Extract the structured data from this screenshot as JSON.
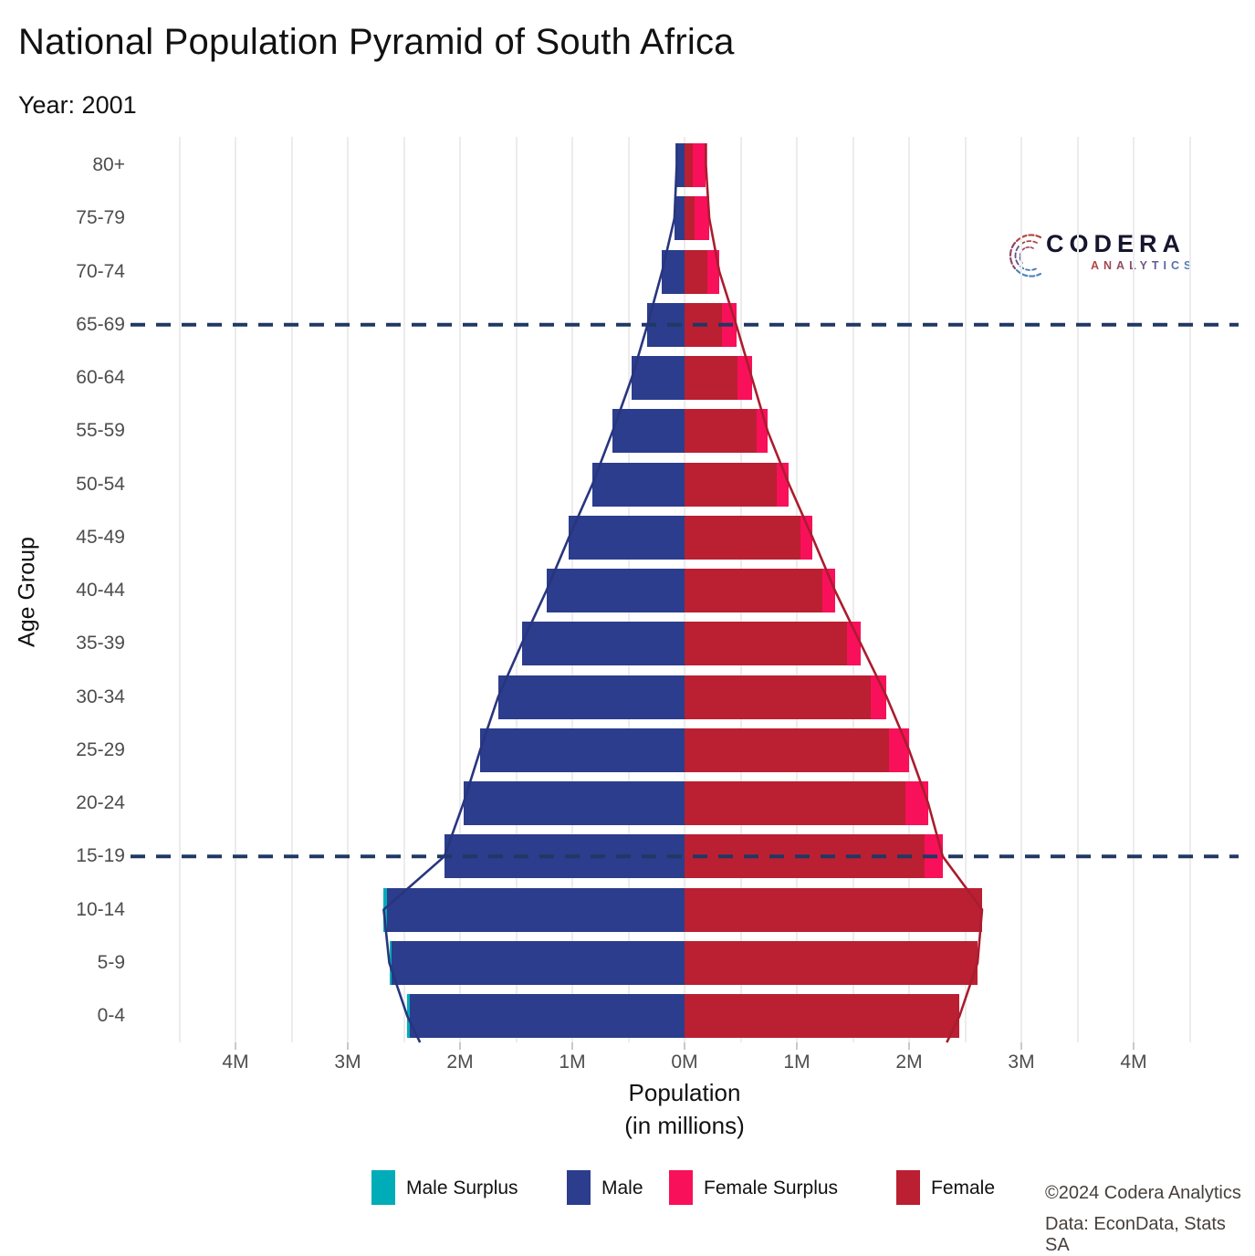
{
  "title": "National Population Pyramid of South Africa",
  "subtitle": "Year: 2001",
  "logo": {
    "brand": "CODERA",
    "sub": "ANALYTICS"
  },
  "chart_data": {
    "type": "bar",
    "variant": "population-pyramid",
    "title": "National Population Pyramid of South Africa",
    "subtitle": "Year: 2001",
    "xlabel": "Population",
    "xlabel2": "(in millions)",
    "ylabel": "Age Group",
    "units": "millions of people",
    "x_ticks": [
      {
        "label": "4M",
        "value": -4
      },
      {
        "label": "3M",
        "value": -3
      },
      {
        "label": "2M",
        "value": -2
      },
      {
        "label": "1M",
        "value": -1
      },
      {
        "label": "0M",
        "value": 0
      },
      {
        "label": "1M",
        "value": 1
      },
      {
        "label": "2M",
        "value": 2
      },
      {
        "label": "3M",
        "value": 3
      },
      {
        "label": "4M",
        "value": 4
      }
    ],
    "xlim_millions": [
      -4.9,
      4.9
    ],
    "grid": {
      "vertical_every_millions": 0.5,
      "color": "#ececec"
    },
    "dashed_reference_rows": [
      "65-69",
      "15-19"
    ],
    "rows_top_to_bottom": [
      {
        "age": "80+",
        "male": 0.07,
        "female": 0.19
      },
      {
        "age": "75-79",
        "male": 0.09,
        "female": 0.22
      },
      {
        "age": "70-74",
        "male": 0.2,
        "female": 0.31
      },
      {
        "age": "65-69",
        "male": 0.33,
        "female": 0.46
      },
      {
        "age": "60-64",
        "male": 0.47,
        "female": 0.6
      },
      {
        "age": "55-59",
        "male": 0.64,
        "female": 0.74
      },
      {
        "age": "50-54",
        "male": 0.82,
        "female": 0.93
      },
      {
        "age": "45-49",
        "male": 1.03,
        "female": 1.14
      },
      {
        "age": "40-44",
        "male": 1.23,
        "female": 1.34
      },
      {
        "age": "35-39",
        "male": 1.45,
        "female": 1.57
      },
      {
        "age": "30-34",
        "male": 1.66,
        "female": 1.8
      },
      {
        "age": "25-29",
        "male": 1.82,
        "female": 2.0
      },
      {
        "age": "20-24",
        "male": 1.97,
        "female": 2.17
      },
      {
        "age": "15-19",
        "male": 2.14,
        "female": 2.3
      },
      {
        "age": "10-14",
        "male": 2.68,
        "female": 2.65
      },
      {
        "age": "5-9",
        "male": 2.63,
        "female": 2.61
      },
      {
        "age": "0-4",
        "male": 2.47,
        "female": 2.45
      }
    ],
    "legend": [
      {
        "label": "Male Surplus",
        "color": "#00acb8"
      },
      {
        "label": "Male",
        "color": "#2b3d8c"
      },
      {
        "label": "Female Surplus",
        "color": "#f9105a"
      },
      {
        "label": "Female",
        "color": "#ba2032"
      }
    ],
    "colors": {
      "male": "#2b3d8c",
      "male_surplus": "#00acb8",
      "female": "#ba2032",
      "female_surplus": "#f9105a",
      "male_outline": "#28357e",
      "female_outline": "#ab1c2e",
      "dashed_line": "#203864"
    }
  },
  "credits": {
    "line1": "©2024 Codera Analytics",
    "line2": "Data: EconData, Stats SA"
  }
}
